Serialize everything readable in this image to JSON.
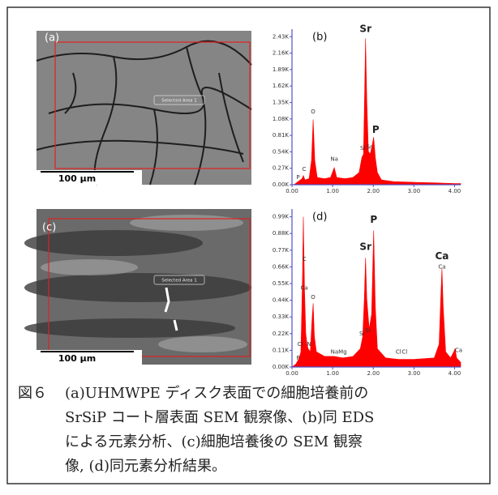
{
  "chart_data": [
    {
      "type": "area",
      "title": "(b)",
      "color": "#ff0000",
      "x": [
        0,
        0.05,
        0.15,
        0.25,
        0.28,
        0.32,
        0.42,
        0.48,
        0.52,
        0.56,
        0.62,
        0.8,
        0.95,
        1.04,
        1.1,
        1.3,
        1.5,
        1.65,
        1.72,
        1.76,
        1.79,
        1.81,
        1.84,
        1.88,
        1.92,
        1.96,
        2.01,
        2.05,
        2.1,
        2.2,
        2.5,
        3.0,
        3.5,
        4.0,
        4.15
      ],
      "values": [
        0,
        0,
        0.05,
        0.1,
        0.15,
        0.08,
        0.1,
        0.4,
        1.07,
        0.4,
        0.12,
        0.1,
        0.12,
        0.28,
        0.12,
        0.1,
        0.12,
        0.2,
        0.45,
        0.5,
        1.6,
        2.4,
        1.4,
        0.55,
        0.5,
        0.6,
        0.78,
        0.45,
        0.2,
        0.08,
        0.05,
        0.04,
        0.03,
        0.02,
        0.02
      ],
      "xlim": [
        0,
        4.15
      ],
      "xticks": [
        {
          "value": 0,
          "label": "0.00"
        },
        {
          "value": 1,
          "label": "1.00"
        },
        {
          "value": 2,
          "label": "2.00"
        },
        {
          "value": 3,
          "label": "3.00"
        },
        {
          "value": 4,
          "label": "4.00"
        }
      ],
      "ylim": [
        0,
        2.5
      ],
      "yticks": [
        {
          "value": 0,
          "label": "0.00K"
        },
        {
          "value": 0.27,
          "label": "0.27K"
        },
        {
          "value": 0.54,
          "label": "0.54K"
        },
        {
          "value": 0.81,
          "label": "0.81K"
        },
        {
          "value": 1.08,
          "label": "1.08K"
        },
        {
          "value": 1.35,
          "label": "1.35K"
        },
        {
          "value": 1.62,
          "label": "1.62K"
        },
        {
          "value": 1.89,
          "label": "1.89K"
        },
        {
          "value": 2.16,
          "label": "2.16K"
        },
        {
          "value": 2.43,
          "label": "2.43K"
        }
      ],
      "major_labels": [
        {
          "text": "Sr",
          "x": 1.81,
          "y": 2.55
        },
        {
          "text": "P",
          "x": 2.06,
          "y": 0.9
        }
      ],
      "minor_labels": [
        {
          "text": "O",
          "x": 0.52,
          "y": 1.2
        },
        {
          "text": "C",
          "x": 0.3,
          "y": 0.25
        },
        {
          "text": "P",
          "x": 0.15,
          "y": 0.12
        },
        {
          "text": "Na",
          "x": 1.04,
          "y": 0.42
        },
        {
          "text": "Si",
          "x": 1.74,
          "y": 0.6
        },
        {
          "text": "Sr",
          "x": 1.9,
          "y": 0.62
        }
      ]
    },
    {
      "type": "area",
      "title": "(d)",
      "color": "#ff0000",
      "x": [
        0,
        0.1,
        0.18,
        0.22,
        0.26,
        0.28,
        0.31,
        0.34,
        0.37,
        0.4,
        0.45,
        0.49,
        0.52,
        0.55,
        0.6,
        0.8,
        1.04,
        1.25,
        1.5,
        1.68,
        1.74,
        1.78,
        1.81,
        1.84,
        1.9,
        1.96,
        2.01,
        2.05,
        2.1,
        2.3,
        2.62,
        3.0,
        3.5,
        3.62,
        3.66,
        3.69,
        3.72,
        3.78,
        3.9,
        3.98,
        4.01,
        4.05,
        4.15
      ],
      "values": [
        0,
        0.02,
        0.06,
        0.1,
        0.6,
        0.99,
        0.5,
        0.22,
        0.15,
        0.12,
        0.1,
        0.3,
        0.42,
        0.2,
        0.1,
        0.07,
        0.07,
        0.06,
        0.07,
        0.12,
        0.2,
        0.45,
        0.72,
        0.45,
        0.25,
        0.35,
        0.9,
        0.4,
        0.12,
        0.06,
        0.05,
        0.05,
        0.06,
        0.15,
        0.45,
        0.65,
        0.4,
        0.1,
        0.06,
        0.1,
        0.12,
        0.06,
        0.03
      ],
      "xlim": [
        0,
        4.15
      ],
      "xticks": [
        {
          "value": 0,
          "label": "0.00"
        },
        {
          "value": 1,
          "label": "1.00"
        },
        {
          "value": 2,
          "label": "2.00"
        },
        {
          "value": 3,
          "label": "3.00"
        },
        {
          "value": 4,
          "label": "4.00"
        }
      ],
      "ylim": [
        0,
        1.02
      ],
      "yticks": [
        {
          "value": 0,
          "label": "0.00K"
        },
        {
          "value": 0.11,
          "label": "0.11K"
        },
        {
          "value": 0.22,
          "label": "0.22K"
        },
        {
          "value": 0.33,
          "label": "0.33K"
        },
        {
          "value": 0.44,
          "label": "0.44K"
        },
        {
          "value": 0.55,
          "label": "0.55K"
        },
        {
          "value": 0.66,
          "label": "0.66K"
        },
        {
          "value": 0.77,
          "label": "0.77K"
        },
        {
          "value": 0.88,
          "label": "0.88K"
        },
        {
          "value": 0.99,
          "label": "0.99K"
        }
      ],
      "major_labels": [
        {
          "text": "Sr",
          "x": 1.81,
          "y": 0.79
        },
        {
          "text": "P",
          "x": 2.01,
          "y": 0.97
        },
        {
          "text": "Ca",
          "x": 3.69,
          "y": 0.73
        }
      ],
      "minor_labels": [
        {
          "text": "C",
          "x": 0.3,
          "y": 0.71
        },
        {
          "text": "Ca",
          "x": 0.3,
          "y": 0.52
        },
        {
          "text": "O",
          "x": 0.52,
          "y": 0.46
        },
        {
          "text": "Cl",
          "x": 0.2,
          "y": 0.15
        },
        {
          "text": "N",
          "x": 0.42,
          "y": 0.15
        },
        {
          "text": "P",
          "x": 0.15,
          "y": 0.06
        },
        {
          "text": "NaMg",
          "x": 1.15,
          "y": 0.1
        },
        {
          "text": "Si",
          "x": 1.72,
          "y": 0.22
        },
        {
          "text": "Sr",
          "x": 1.87,
          "y": 0.24
        },
        {
          "text": "Cl",
          "x": 2.62,
          "y": 0.1
        },
        {
          "text": "Cl",
          "x": 2.77,
          "y": 0.1
        },
        {
          "text": "Ca",
          "x": 3.69,
          "y": 0.66
        },
        {
          "text": "Ca",
          "x": 4.1,
          "y": 0.11
        }
      ]
    }
  ],
  "images": [
    {
      "label": "(a)",
      "region_label": "Selected Area 1",
      "scale_bar": "100 μm"
    },
    {
      "label": "(c)",
      "region_label": "Selected Area 1",
      "scale_bar": "100 μm"
    }
  ],
  "caption": {
    "label": "図６",
    "lines": [
      "(a)UHMWPE ディスク表面での細胞培養前の",
      "SrSiP コート層表面 SEM 観察像、(b)同 EDS",
      "による元素分析、(c)細胞培養後の SEM 観察",
      "像, (d)同元素分析結果。"
    ]
  }
}
